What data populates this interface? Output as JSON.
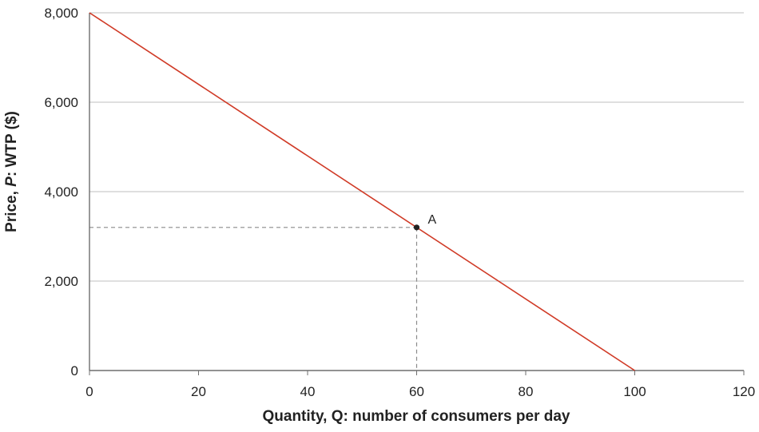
{
  "chart_data": {
    "type": "line",
    "xlabel": "Quantity, Q: number of consumers per day",
    "ylabel_parts": [
      "Price, ",
      "P",
      ": WTP ($)"
    ],
    "xlim": [
      0,
      120
    ],
    "ylim": [
      0,
      8000
    ],
    "x_ticks": [
      0,
      20,
      40,
      60,
      80,
      100,
      120
    ],
    "x_tick_labels": [
      "0",
      "20",
      "40",
      "60",
      "80",
      "100",
      "120"
    ],
    "y_ticks": [
      0,
      2000,
      4000,
      6000,
      8000
    ],
    "y_tick_labels": [
      "0",
      "2,000",
      "4,000",
      "6,000",
      "8,000"
    ],
    "grid": "horizontal",
    "series": [
      {
        "color": "#d03a26",
        "x": [
          0,
          100
        ],
        "y": [
          8000,
          0
        ]
      }
    ],
    "points": [
      {
        "label": "A",
        "x": 60,
        "y": 3200,
        "color": "#222222",
        "guides": true
      }
    ]
  }
}
